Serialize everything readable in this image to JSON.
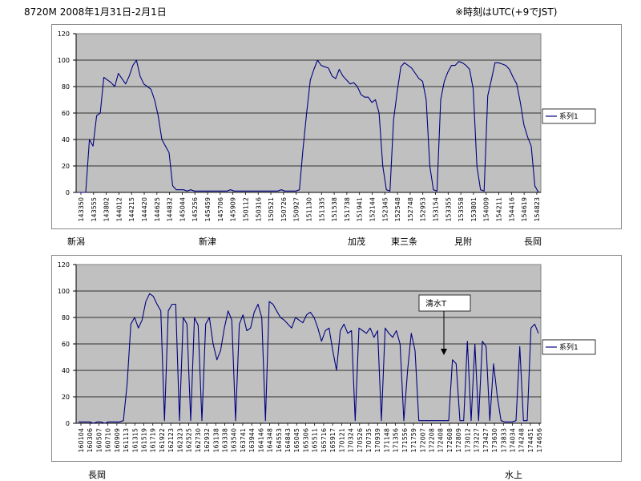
{
  "header": {
    "title": "8720M  2008年1月31日-2月1日",
    "note": "※時刻はUTC(+9でJST)"
  },
  "chart_data": [
    {
      "type": "line",
      "x_ticks": [
        "143350",
        "143555",
        "143802",
        "144012",
        "144215",
        "144420",
        "144625",
        "144832",
        "145044",
        "145256",
        "145459",
        "145706",
        "145909",
        "150112",
        "150316",
        "150521",
        "150726",
        "150927",
        "151130",
        "151335",
        "151538",
        "151738",
        "151941",
        "152144",
        "152345",
        "152548",
        "152748",
        "152953",
        "153154",
        "153355",
        "153558",
        "153801",
        "154009",
        "154211",
        "154416",
        "154619",
        "154823"
      ],
      "ylim": [
        0,
        120
      ],
      "y_ticks": [
        0,
        20,
        40,
        60,
        80,
        100,
        120
      ],
      "grid": true,
      "legend": "right",
      "series": [
        {
          "name": "系列1",
          "color": "#000080",
          "values": [
            0,
            0,
            0,
            40,
            35,
            58,
            60,
            87,
            85,
            83,
            80,
            90,
            86,
            82,
            88,
            96,
            100,
            88,
            82,
            80,
            78,
            70,
            58,
            40,
            35,
            30,
            5,
            2,
            2,
            2,
            1,
            2,
            1,
            1,
            1,
            1,
            1,
            1,
            1,
            1,
            1,
            1,
            2,
            1,
            1,
            1,
            1,
            1,
            1,
            1,
            1,
            1,
            1,
            1,
            1,
            1,
            2,
            1,
            1,
            1,
            1,
            2,
            33,
            60,
            85,
            93,
            100,
            96,
            95,
            94,
            88,
            86,
            93,
            88,
            85,
            82,
            83,
            80,
            74,
            72,
            72,
            68,
            70,
            60,
            20,
            2,
            1,
            55,
            76,
            95,
            98,
            96,
            94,
            90,
            86,
            84,
            70,
            20,
            2,
            1,
            70,
            84,
            91,
            96,
            96,
            99,
            98,
            96,
            93,
            78,
            20,
            2,
            1,
            73,
            85,
            98,
            98,
            97,
            96,
            93,
            87,
            82,
            68,
            51,
            42,
            35,
            5,
            0
          ]
        }
      ]
    },
    {
      "type": "line",
      "x_ticks": [
        "160104",
        "160306",
        "160507",
        "160710",
        "160909",
        "161113",
        "161315",
        "161519",
        "161719",
        "161922",
        "162123",
        "162323",
        "162525",
        "162730",
        "162932",
        "163138",
        "163338",
        "163540",
        "163741",
        "163944",
        "164146",
        "164348",
        "164553",
        "164843",
        "165045",
        "165306",
        "165511",
        "165716",
        "165917",
        "170121",
        "170324",
        "170526",
        "170735",
        "170939",
        "171148",
        "171356",
        "171556",
        "171759",
        "172007",
        "172208",
        "172408",
        "172608",
        "172809",
        "173012",
        "173227",
        "173427",
        "173630",
        "173833",
        "174034",
        "174248",
        "174451",
        "174656"
      ],
      "ylim": [
        0,
        120
      ],
      "y_ticks": [
        0,
        20,
        40,
        60,
        80,
        100,
        120
      ],
      "grid": true,
      "legend": "right",
      "annotation": "清水T",
      "series": [
        {
          "name": "系列1",
          "color": "#000080",
          "values": [
            1,
            1,
            1,
            1,
            0,
            1,
            1,
            0,
            1,
            1,
            1,
            1,
            2,
            30,
            75,
            80,
            72,
            78,
            92,
            98,
            96,
            90,
            85,
            2,
            85,
            90,
            90,
            2,
            80,
            75,
            2,
            80,
            74,
            2,
            75,
            80,
            60,
            48,
            55,
            72,
            85,
            78,
            2,
            75,
            82,
            70,
            72,
            84,
            90,
            80,
            2,
            92,
            90,
            85,
            80,
            78,
            75,
            72,
            80,
            78,
            76,
            82,
            84,
            80,
            72,
            62,
            70,
            72,
            55,
            40,
            70,
            75,
            68,
            70,
            2,
            72,
            70,
            68,
            72,
            65,
            70,
            2,
            72,
            68,
            65,
            70,
            60,
            2,
            40,
            68,
            55,
            2,
            2,
            2,
            2,
            2,
            2,
            2,
            2,
            2,
            48,
            45,
            2,
            2,
            62,
            2,
            60,
            2,
            62,
            58,
            2,
            45,
            20,
            2,
            1,
            1,
            1,
            2,
            58,
            2,
            2,
            72,
            75,
            68
          ]
        }
      ]
    }
  ],
  "stations_top": [
    "新潟",
    "新津",
    "加茂",
    "東三条",
    "見附",
    "長岡"
  ],
  "stations_bottom": [
    "長岡",
    "水上"
  ]
}
